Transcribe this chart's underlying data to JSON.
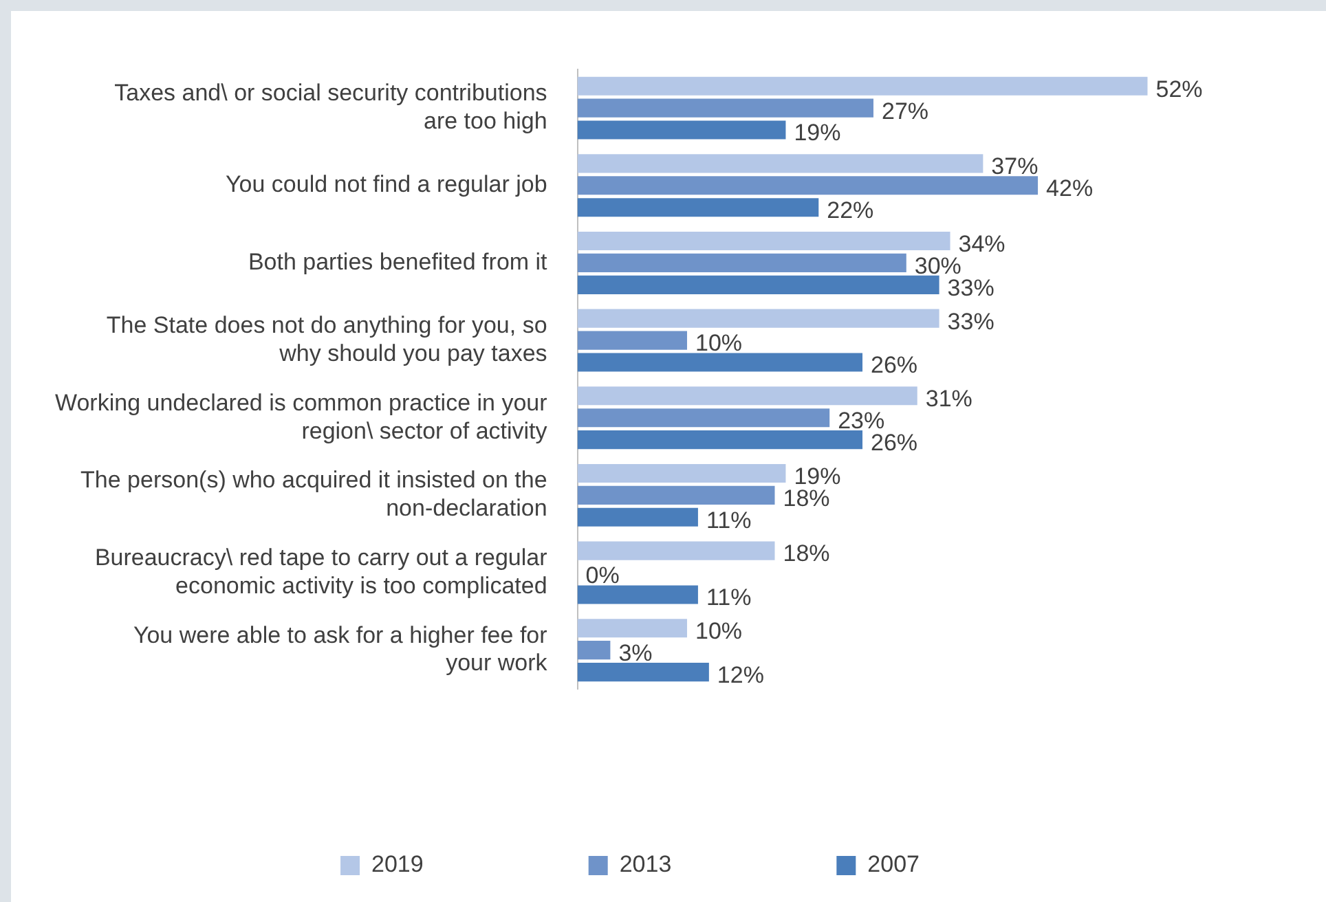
{
  "chart_data": {
    "type": "bar",
    "orientation": "horizontal",
    "legend": "bottom",
    "categories": [
      "Taxes and\\ or social security contributions are too high",
      "You could not find a regular job",
      "Both parties benefited from it",
      "The State does not do anything for you, so why should you pay taxes",
      "Working undeclared is common practice in your region\\ sector of activity",
      "The person(s) who acquired it insisted on the non-declaration",
      "Bureaucracy\\ red tape to carry out a regular economic activity is too complicated",
      "You were able to ask for a higher fee for your work"
    ],
    "series": [
      {
        "name": "2019",
        "color": "#b4c7e7",
        "values": [
          52,
          37,
          34,
          33,
          31,
          19,
          18,
          10
        ],
        "value_labels": [
          "52%",
          "37%",
          "34%",
          "33%",
          "31%",
          "19%",
          "18%",
          "10%"
        ]
      },
      {
        "name": "2013",
        "color": "#6f93c9",
        "values": [
          27,
          42,
          30,
          10,
          23,
          18,
          0,
          3
        ],
        "value_labels": [
          "27%",
          "42%",
          "30%",
          "10%",
          "23%",
          "18%",
          "0%",
          "3%"
        ]
      },
      {
        "name": "2007",
        "color": "#4a7ebb",
        "values": [
          19,
          22,
          33,
          26,
          26,
          11,
          11,
          12
        ],
        "value_labels": [
          "19%",
          "22%",
          "33%",
          "26%",
          "26%",
          "11%",
          "11%",
          "12%"
        ]
      }
    ]
  }
}
